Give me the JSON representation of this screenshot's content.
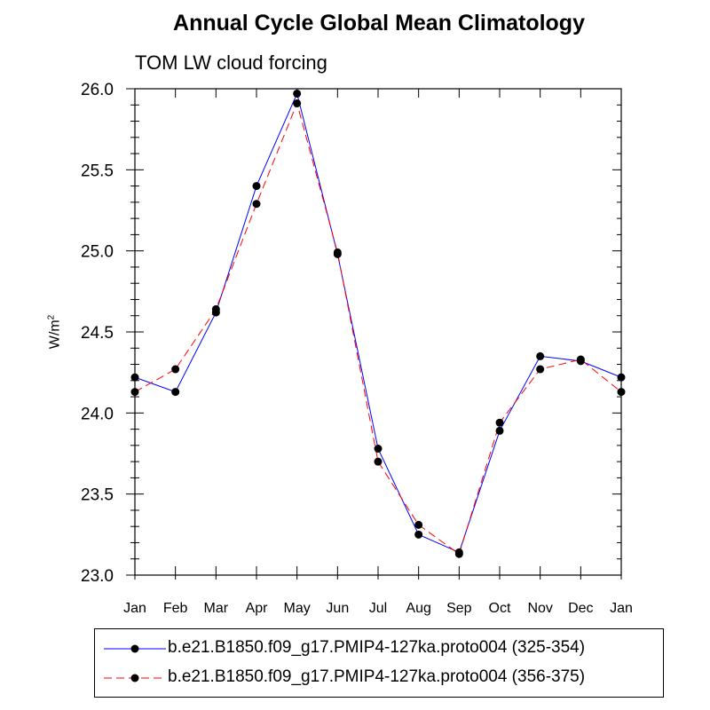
{
  "chart_data": {
    "type": "line",
    "title": "Annual Cycle Global Mean Climatology",
    "subtitle": "TOM LW cloud forcing",
    "xlabel": "",
    "ylabel": "W/m",
    "ylabel_superscript": "2",
    "categories": [
      "Jan",
      "Feb",
      "Mar",
      "Apr",
      "May",
      "Jun",
      "Jul",
      "Aug",
      "Sep",
      "Oct",
      "Nov",
      "Dec",
      "Jan"
    ],
    "ylim": [
      23.0,
      26.0
    ],
    "yticks": [
      "23.0",
      "23.5",
      "24.0",
      "24.5",
      "25.0",
      "25.5",
      "26.0"
    ],
    "grid": false,
    "legend_position": "bottom",
    "series": [
      {
        "name": "b.e21.B1850.f09_g17.PMIP4-127ka.proto004 (325-354)",
        "color": "#0000ff",
        "dash": "solid",
        "values": [
          24.22,
          24.13,
          24.62,
          25.4,
          25.97,
          24.98,
          23.78,
          23.25,
          23.14,
          23.89,
          24.35,
          24.32,
          24.22
        ]
      },
      {
        "name": "b.e21.B1850.f09_g17.PMIP4-127ka.proto004 (356-375)",
        "color": "#ff0000",
        "dash": "dashed",
        "values": [
          24.13,
          24.27,
          24.64,
          25.29,
          25.91,
          24.99,
          23.7,
          23.31,
          23.13,
          23.94,
          24.27,
          24.33,
          24.13
        ]
      }
    ]
  }
}
